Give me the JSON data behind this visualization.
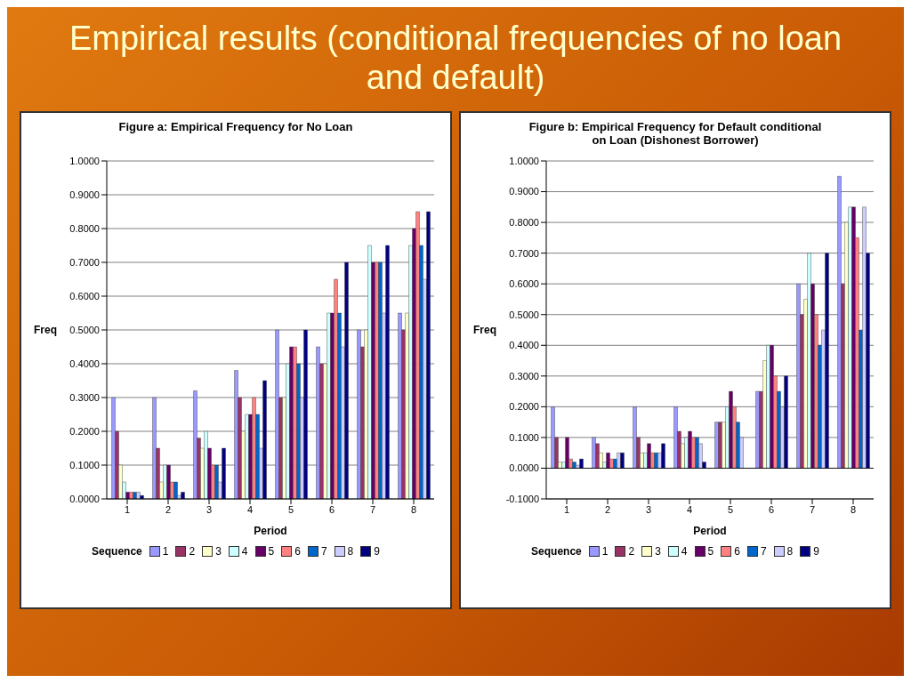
{
  "chart_data": [
    {
      "type": "bar",
      "title": "Figure a: Empirical Frequency for No Loan",
      "annotations": [
        "Empirical results (conditional frequencies of no loan and default)"
      ],
      "xlabel": "Period",
      "ylabel": "Freq",
      "legend_title": "Sequence",
      "legend": "bottom",
      "grid": "y",
      "categories": [
        "1",
        "2",
        "3",
        "4",
        "5",
        "6",
        "7",
        "8"
      ],
      "ylim": [
        0,
        1
      ],
      "yticks": [
        {
          "value": 0,
          "label": "0.0000"
        },
        {
          "value": 0.1,
          "label": "0.1000"
        },
        {
          "value": 0.2,
          "label": "0.2000"
        },
        {
          "value": 0.3,
          "label": "0.3000"
        },
        {
          "value": 0.4,
          "label": "0.4000"
        },
        {
          "value": 0.5,
          "label": "0.5000"
        },
        {
          "value": 0.6,
          "label": "0.6000"
        },
        {
          "value": 0.7,
          "label": "0.7000"
        },
        {
          "value": 0.8,
          "label": "0.8000"
        },
        {
          "value": 0.9,
          "label": "0.9000"
        },
        {
          "value": 1,
          "label": "1.0000"
        }
      ],
      "series": [
        {
          "name": "1",
          "color": "#9999ff",
          "values": [
            0.3,
            0.3,
            0.32,
            0.38,
            0.5,
            0.45,
            0.5,
            0.55
          ]
        },
        {
          "name": "2",
          "color": "#993366",
          "values": [
            0.2,
            0.15,
            0.18,
            0.3,
            0.3,
            0.4,
            0.45,
            0.5
          ]
        },
        {
          "name": "3",
          "color": "#ffffcc",
          "values": [
            0.1,
            0.05,
            0.15,
            0.2,
            0.3,
            0.4,
            0.5,
            0.55
          ]
        },
        {
          "name": "4",
          "color": "#ccffff",
          "values": [
            0.05,
            0.1,
            0.2,
            0.25,
            0.4,
            0.55,
            0.75,
            0.75
          ]
        },
        {
          "name": "5",
          "color": "#660066",
          "values": [
            0.02,
            0.1,
            0.15,
            0.25,
            0.45,
            0.55,
            0.7,
            0.8
          ]
        },
        {
          "name": "6",
          "color": "#ff8080",
          "values": [
            0.02,
            0.05,
            0.1,
            0.3,
            0.45,
            0.65,
            0.7,
            0.85
          ]
        },
        {
          "name": "7",
          "color": "#0066cc",
          "values": [
            0.02,
            0.05,
            0.1,
            0.25,
            0.4,
            0.55,
            0.7,
            0.75
          ]
        },
        {
          "name": "8",
          "color": "#ccccff",
          "values": [
            0.02,
            0.01,
            0.05,
            0.15,
            0.3,
            0.45,
            0.55,
            0.65
          ]
        },
        {
          "name": "9",
          "color": "#000080",
          "values": [
            0.01,
            0.02,
            0.15,
            0.35,
            0.5,
            0.7,
            0.75,
            0.85
          ]
        }
      ]
    },
    {
      "type": "bar",
      "title": "Figure b: Empirical Frequency for Default conditional on Loan (Dishonest Borrower)",
      "xlabel": "Period",
      "ylabel": "Freq",
      "legend_title": "Sequence",
      "legend": "bottom",
      "grid": "y",
      "categories": [
        "1",
        "2",
        "3",
        "4",
        "5",
        "6",
        "7",
        "8"
      ],
      "ylim": [
        -0.1,
        1
      ],
      "yticks": [
        {
          "value": -0.1,
          "label": "-0.1000"
        },
        {
          "value": 0,
          "label": "0.0000"
        },
        {
          "value": 0.1,
          "label": "0.1000"
        },
        {
          "value": 0.2,
          "label": "0.2000"
        },
        {
          "value": 0.3,
          "label": "0.3000"
        },
        {
          "value": 0.4,
          "label": "0.4000"
        },
        {
          "value": 0.5,
          "label": "0.5000"
        },
        {
          "value": 0.6,
          "label": "0.6000"
        },
        {
          "value": 0.7,
          "label": "0.7000"
        },
        {
          "value": 0.8,
          "label": "0.8000"
        },
        {
          "value": 0.9,
          "label": "0.9000"
        },
        {
          "value": 1,
          "label": "1.0000"
        }
      ],
      "series": [
        {
          "name": "1",
          "color": "#9999ff",
          "values": [
            0.2,
            0.1,
            0.2,
            0.2,
            0.15,
            0.25,
            0.6,
            0.95
          ]
        },
        {
          "name": "2",
          "color": "#993366",
          "values": [
            0.1,
            0.08,
            0.1,
            0.12,
            0.15,
            0.25,
            0.5,
            0.6
          ]
        },
        {
          "name": "3",
          "color": "#ffffcc",
          "values": [
            0.02,
            0.05,
            0.05,
            0.08,
            0.15,
            0.35,
            0.55,
            0.8
          ]
        },
        {
          "name": "4",
          "color": "#ccffff",
          "values": [
            0.02,
            0.02,
            0.05,
            0.1,
            0.2,
            0.4,
            0.7,
            0.85
          ]
        },
        {
          "name": "5",
          "color": "#660066",
          "values": [
            0.1,
            0.05,
            0.08,
            0.12,
            0.25,
            0.4,
            0.6,
            0.85
          ]
        },
        {
          "name": "6",
          "color": "#ff8080",
          "values": [
            0.03,
            0.03,
            0.05,
            0.1,
            0.2,
            0.3,
            0.5,
            0.75
          ]
        },
        {
          "name": "7",
          "color": "#0066cc",
          "values": [
            0.02,
            0.03,
            0.05,
            0.1,
            0.15,
            0.25,
            0.4,
            0.45
          ]
        },
        {
          "name": "8",
          "color": "#ccccff",
          "values": [
            0.01,
            0.05,
            0.05,
            0.08,
            0.1,
            0.2,
            0.45,
            0.85
          ]
        },
        {
          "name": "9",
          "color": "#000080",
          "values": [
            0.03,
            0.05,
            0.08,
            0.02,
            0,
            0.3,
            0.7,
            0.7
          ]
        }
      ]
    }
  ]
}
